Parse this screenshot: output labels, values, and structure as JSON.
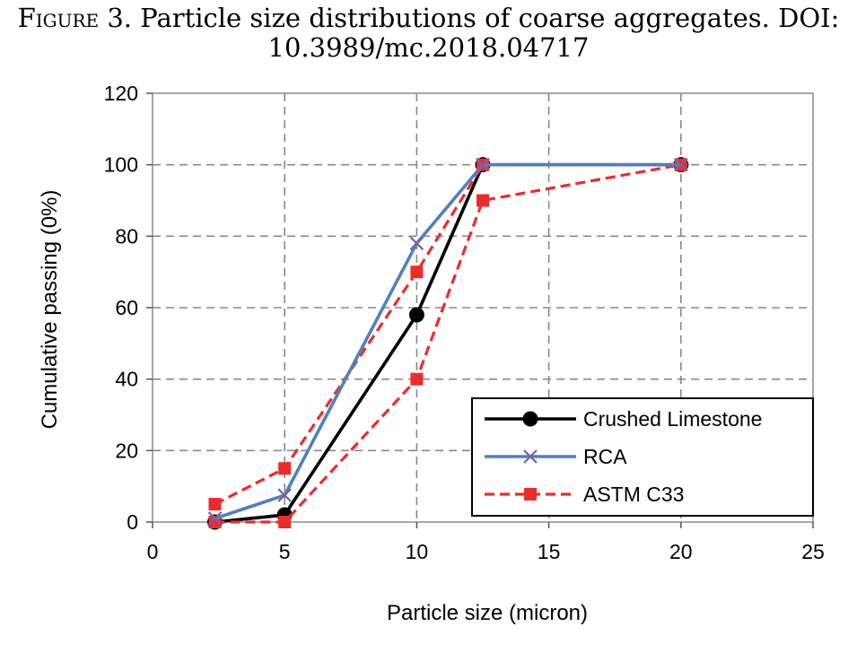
{
  "caption": {
    "prefix": "Figure",
    "text": " 3. Particle size distributions of coarse aggregates. DOI:",
    "line2": "10.3989/mc.2018.04717"
  },
  "chart_data": {
    "type": "line",
    "xlabel": "Particle size (micron)",
    "ylabel": "Cumulative passing (0%)",
    "xlim": [
      0,
      25
    ],
    "ylim": [
      0,
      120
    ],
    "xticks": [
      0,
      5,
      10,
      15,
      20,
      25
    ],
    "yticks": [
      0,
      20,
      40,
      60,
      80,
      100,
      120
    ],
    "grid": true,
    "legend_position": "bottom-right",
    "series": [
      {
        "name": "Crushed Limestone",
        "color": "#000000",
        "line": "solid",
        "marker": "circle",
        "points": [
          [
            2.36,
            0
          ],
          [
            5,
            2
          ],
          [
            10,
            58
          ],
          [
            12.5,
            100
          ],
          [
            20,
            100
          ]
        ]
      },
      {
        "name": "RCA",
        "color": "#4f81bd",
        "line": "solid",
        "marker": "x",
        "points": [
          [
            2.36,
            1
          ],
          [
            5,
            7.5
          ],
          [
            10,
            78
          ],
          [
            12.5,
            100
          ],
          [
            20,
            100
          ]
        ]
      },
      {
        "name": "ASTM C33",
        "color": "#ee2b2b",
        "line": "dashed",
        "marker": "square",
        "points": [
          [
            2.36,
            5
          ],
          [
            5,
            15
          ],
          [
            10,
            70
          ],
          [
            12.5,
            100
          ],
          [
            20,
            100
          ]
        ]
      },
      {
        "name": "ASTM C33",
        "color": "#ee2b2b",
        "line": "dashed",
        "marker": "square",
        "show_in_legend": false,
        "points": [
          [
            2.36,
            0
          ],
          [
            5,
            0
          ],
          [
            10,
            40
          ],
          [
            12.5,
            90
          ],
          [
            20,
            100
          ]
        ]
      }
    ]
  }
}
